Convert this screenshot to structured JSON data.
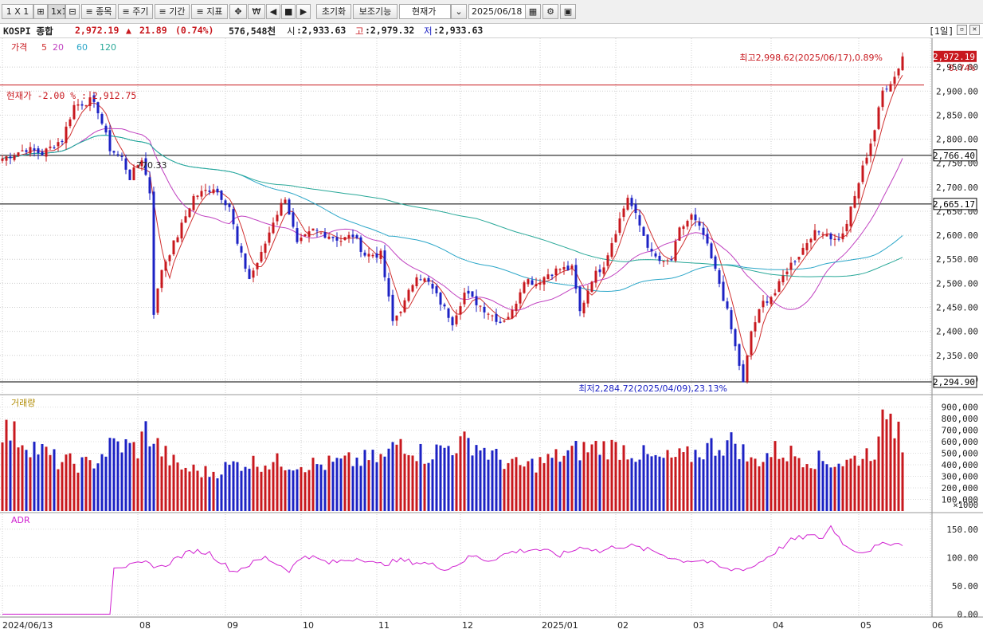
{
  "toolbar": {
    "layout_label": "1 X 1",
    "grid_icon": "grid-icon",
    "layout_1x1": "1x1",
    "split_icon": "split-icon",
    "symbol_label": "≡ 종목",
    "period_label": "≡ 주기",
    "range_label": "≡ 기간",
    "indicator_label": "≡ 지표",
    "move_icon": "move-icon",
    "won_icon": "₩",
    "prev_icon": "◀",
    "stop_icon": "■",
    "next_icon": "▶",
    "reset_label": "초기화",
    "aux_label": "보조기능",
    "price_type_value": "현재가",
    "date_value": "2025/06/18"
  },
  "header": {
    "symbol": "KOSPI 종합",
    "price": "2,972.19",
    "change_arrow": "▲",
    "change": "21.89",
    "change_pct": "(0.74%)",
    "volume": "576,548천",
    "open_label": "시",
    "open": ":2,933.63",
    "high_label": "고",
    "high": ":2,979.32",
    "low_label": "저",
    "low": ":2,933.63",
    "period": "[1일]"
  },
  "legend": {
    "price": "가격",
    "ma5": "5",
    "ma20": "20",
    "ma60": "60",
    "ma120": "120",
    "volume": "거래량",
    "adr": "ADR"
  },
  "colors": {
    "up": "#c8181e",
    "down": "#1c22c4",
    "ma5": "#d03030",
    "ma20": "#c040c0",
    "ma60": "#2aa6c8",
    "ma120": "#28a898",
    "adr": "#d020d0"
  },
  "chart_data": {
    "type": "candlestick",
    "x_range": [
      "2024/06/13",
      "2025/06/18"
    ],
    "x_ticks": [
      {
        "label": "2024/06/13",
        "index": 0
      },
      {
        "label": "08",
        "index": 34
      },
      {
        "label": "09",
        "index": 56
      },
      {
        "label": "10",
        "index": 75
      },
      {
        "label": "11",
        "index": 94
      },
      {
        "label": "12",
        "index": 115
      },
      {
        "label": "2025/01",
        "index": 135
      },
      {
        "label": "02",
        "index": 154
      },
      {
        "label": "03",
        "index": 173
      },
      {
        "label": "04",
        "index": 193
      },
      {
        "label": "05",
        "index": 215
      },
      {
        "label": "06",
        "index": 233
      }
    ],
    "y_ticks": [
      "2,950.00",
      "2,900.00",
      "2,850.00",
      "2,800.00",
      "2,750.00",
      "2,700.00",
      "2,650.00",
      "2,600.00",
      "2,550.00",
      "2,500.00",
      "2,450.00",
      "2,400.00",
      "2,350.00",
      "2,300.00"
    ],
    "y_tick_values": [
      2950,
      2900,
      2850,
      2800,
      2750,
      2700,
      2650,
      2600,
      2550,
      2500,
      2450,
      2400,
      2350,
      2300
    ],
    "ylim": [
      2270,
      3010
    ],
    "current_price_label": "2,972.19",
    "current_price_value": 2972.19,
    "current_pct_label": "0.74%",
    "reference_lines": [
      {
        "label": "현재가 -2.00 % : 2,912.75",
        "value": 2912.75,
        "color": "#c8181e"
      },
      {
        "label": "2,766.40",
        "value": 2766.4,
        "color": "#000000"
      },
      {
        "label": "2,665.17",
        "value": 2665.17,
        "color": "#000000"
      },
      {
        "label": "2,294.90",
        "value": 2294.9,
        "color": "#000000"
      }
    ],
    "annotations": {
      "high": "최고2,998.62(2025/06/17),0.89%",
      "low": "최저2,284.72(2025/04/09),23.13%",
      "trend_point": "770.33"
    },
    "price_anchors": [
      [
        0,
        2760
      ],
      [
        6,
        2780
      ],
      [
        10,
        2770
      ],
      [
        15,
        2800
      ],
      [
        18,
        2870
      ],
      [
        22,
        2880
      ],
      [
        24,
        2860
      ],
      [
        27,
        2780
      ],
      [
        30,
        2760
      ],
      [
        32,
        2720
      ],
      [
        35,
        2760
      ],
      [
        37,
        2690
      ],
      [
        38,
        2440
      ],
      [
        40,
        2530
      ],
      [
        44,
        2600
      ],
      [
        48,
        2680
      ],
      [
        53,
        2700
      ],
      [
        57,
        2660
      ],
      [
        59,
        2580
      ],
      [
        62,
        2510
      ],
      [
        65,
        2560
      ],
      [
        68,
        2630
      ],
      [
        71,
        2680
      ],
      [
        74,
        2580
      ],
      [
        78,
        2610
      ],
      [
        82,
        2600
      ],
      [
        85,
        2590
      ],
      [
        88,
        2600
      ],
      [
        91,
        2560
      ],
      [
        95,
        2560
      ],
      [
        98,
        2420
      ],
      [
        101,
        2460
      ],
      [
        104,
        2520
      ],
      [
        107,
        2500
      ],
      [
        110,
        2460
      ],
      [
        113,
        2420
      ],
      [
        116,
        2480
      ],
      [
        119,
        2460
      ],
      [
        122,
        2440
      ],
      [
        125,
        2420
      ],
      [
        128,
        2440
      ],
      [
        131,
        2510
      ],
      [
        134,
        2500
      ],
      [
        137,
        2520
      ],
      [
        140,
        2530
      ],
      [
        143,
        2530
      ],
      [
        145,
        2440
      ],
      [
        148,
        2510
      ],
      [
        151,
        2540
      ],
      [
        154,
        2610
      ],
      [
        157,
        2680
      ],
      [
        160,
        2620
      ],
      [
        163,
        2560
      ],
      [
        166,
        2540
      ],
      [
        168,
        2550
      ],
      [
        170,
        2610
      ],
      [
        173,
        2640
      ],
      [
        176,
        2600
      ],
      [
        178,
        2550
      ],
      [
        180,
        2500
      ],
      [
        182,
        2440
      ],
      [
        185,
        2330
      ],
      [
        186,
        2290
      ],
      [
        188,
        2400
      ],
      [
        191,
        2460
      ],
      [
        194,
        2480
      ],
      [
        197,
        2530
      ],
      [
        200,
        2560
      ],
      [
        203,
        2600
      ],
      [
        206,
        2610
      ],
      [
        209,
        2590
      ],
      [
        211,
        2600
      ],
      [
        214,
        2680
      ],
      [
        216,
        2740
      ],
      [
        219,
        2820
      ],
      [
        221,
        2900
      ],
      [
        224,
        2930
      ],
      [
        226,
        2972
      ]
    ],
    "ma_series": [
      {
        "name": "5",
        "period": 5
      },
      {
        "name": "20",
        "period": 20
      },
      {
        "name": "60",
        "period": 60
      },
      {
        "name": "120",
        "period": 120
      }
    ],
    "volume": {
      "y_ticks": [
        "900,000",
        "800,000",
        "700,000",
        "600,000",
        "500,000",
        "400,000",
        "300,000",
        "200,000",
        "100,000"
      ],
      "y_tick_values": [
        900000,
        800000,
        700000,
        600000,
        500000,
        400000,
        300000,
        200000,
        100000
      ],
      "unit": "×1000",
      "ylim": [
        0,
        980000
      ],
      "anchors": [
        [
          0,
          720000
        ],
        [
          8,
          560000
        ],
        [
          14,
          430000
        ],
        [
          22,
          400000
        ],
        [
          28,
          580000
        ],
        [
          34,
          540000
        ],
        [
          36,
          700000
        ],
        [
          40,
          520000
        ],
        [
          44,
          380000
        ],
        [
          52,
          330000
        ],
        [
          60,
          420000
        ],
        [
          70,
          420000
        ],
        [
          80,
          400000
        ],
        [
          90,
          440000
        ],
        [
          96,
          460000
        ],
        [
          100,
          620000
        ],
        [
          106,
          480000
        ],
        [
          112,
          560000
        ],
        [
          118,
          600000
        ],
        [
          124,
          460000
        ],
        [
          130,
          380000
        ],
        [
          136,
          430000
        ],
        [
          144,
          520000
        ],
        [
          150,
          560000
        ],
        [
          156,
          540000
        ],
        [
          164,
          440000
        ],
        [
          172,
          470000
        ],
        [
          178,
          560000
        ],
        [
          184,
          600000
        ],
        [
          188,
          420000
        ],
        [
          194,
          520000
        ],
        [
          200,
          480000
        ],
        [
          206,
          430000
        ],
        [
          212,
          420000
        ],
        [
          216,
          480000
        ],
        [
          220,
          560000
        ],
        [
          222,
          920000
        ],
        [
          224,
          720000
        ],
        [
          225,
          940000
        ],
        [
          226,
          576548
        ]
      ]
    },
    "adr": {
      "y_ticks": [
        "150.00",
        "100.00",
        "50.00",
        "0.00"
      ],
      "y_tick_values": [
        150,
        100,
        50,
        0
      ],
      "ylim": [
        -5,
        175
      ],
      "anchors": [
        [
          0,
          0
        ],
        [
          27,
          0
        ],
        [
          28,
          85
        ],
        [
          32,
          85
        ],
        [
          36,
          90
        ],
        [
          40,
          83
        ],
        [
          44,
          100
        ],
        [
          48,
          112
        ],
        [
          52,
          108
        ],
        [
          58,
          75
        ],
        [
          66,
          100
        ],
        [
          72,
          78
        ],
        [
          76,
          105
        ],
        [
          82,
          90
        ],
        [
          90,
          100
        ],
        [
          94,
          87
        ],
        [
          100,
          95
        ],
        [
          106,
          90
        ],
        [
          112,
          80
        ],
        [
          118,
          103
        ],
        [
          122,
          95
        ],
        [
          128,
          110
        ],
        [
          134,
          115
        ],
        [
          140,
          104
        ],
        [
          146,
          120
        ],
        [
          150,
          110
        ],
        [
          154,
          120
        ],
        [
          158,
          120
        ],
        [
          164,
          110
        ],
        [
          170,
          95
        ],
        [
          176,
          95
        ],
        [
          182,
          78
        ],
        [
          188,
          82
        ],
        [
          194,
          110
        ],
        [
          198,
          130
        ],
        [
          202,
          138
        ],
        [
          206,
          135
        ],
        [
          208,
          155
        ],
        [
          212,
          118
        ],
        [
          216,
          110
        ],
        [
          220,
          120
        ],
        [
          224,
          128
        ],
        [
          226,
          120
        ]
      ]
    }
  }
}
